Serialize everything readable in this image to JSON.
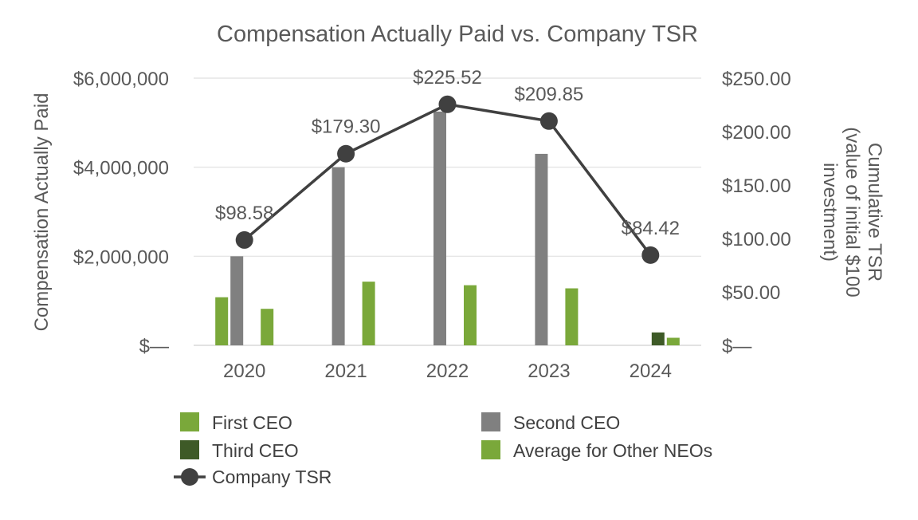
{
  "chart_data": {
    "type": "bar",
    "title": "Compensation Actually Paid vs. Company TSR",
    "categories": [
      "2020",
      "2021",
      "2022",
      "2023",
      "2024"
    ],
    "ylabel": "Compensation Actually Paid",
    "ylabel_right": [
      "Cumulative TSR",
      "(value of initial $100",
      "investment)"
    ],
    "ylim": [
      0,
      6000000
    ],
    "ylim_right": [
      0,
      250
    ],
    "y_ticks": [
      {
        "value": 0,
        "label": "$—"
      },
      {
        "value": 2000000,
        "label": "$2,000,000"
      },
      {
        "value": 4000000,
        "label": "$4,000,000"
      },
      {
        "value": 6000000,
        "label": "$6,000,000"
      }
    ],
    "y_ticks_right": [
      {
        "value": 0,
        "label": "$—"
      },
      {
        "value": 50,
        "label": "$50.00"
      },
      {
        "value": 100,
        "label": "$100.00"
      },
      {
        "value": 150,
        "label": "$150.00"
      },
      {
        "value": 200,
        "label": "$200.00"
      },
      {
        "value": 250,
        "label": "$250.00"
      }
    ],
    "grid": true,
    "legend_position": "bottom",
    "series": [
      {
        "name": "First CEO",
        "color": "#7aa83a",
        "values": [
          1080000,
          0,
          0,
          0,
          0
        ]
      },
      {
        "name": "Second CEO",
        "color": "#808080",
        "values": [
          2000000,
          4000000,
          5250000,
          4300000,
          0
        ]
      },
      {
        "name": "Third CEO",
        "color": "#3e5a27",
        "values": [
          0,
          0,
          0,
          0,
          290000
        ]
      },
      {
        "name": "Average for Other NEOs",
        "color": "#7aa83a",
        "values": [
          820000,
          1430000,
          1350000,
          1280000,
          170000
        ]
      }
    ],
    "line_series": {
      "name": "Company TSR",
      "color": "#404040",
      "values": [
        98.58,
        179.3,
        225.52,
        209.85,
        84.42
      ],
      "labels": [
        "$98.58",
        "$179.30",
        "$225.52",
        "$209.85",
        "$84.42"
      ]
    }
  }
}
